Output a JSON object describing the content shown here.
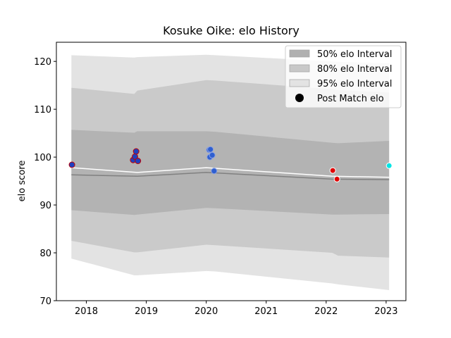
{
  "chart_data": {
    "type": "scatter",
    "title": "Kosuke Oike: elo History",
    "xlabel": "",
    "ylabel": "elo score",
    "xlim": [
      2017.5,
      2023.33
    ],
    "ylim": [
      70,
      124
    ],
    "x_ticks": [
      2018,
      2019,
      2020,
      2021,
      2022,
      2023
    ],
    "y_ticks": [
      70,
      80,
      90,
      100,
      110,
      120
    ],
    "grid": false,
    "legend_position": "top-right",
    "legend": [
      {
        "label": "50% elo Interval",
        "color": "#b0b0b0"
      },
      {
        "label": "80% elo Interval",
        "color": "#c8c8c8"
      },
      {
        "label": "95% elo Interval",
        "color": "#e3e3e3"
      },
      {
        "label": "Post Match elo",
        "color": "#000000"
      }
    ],
    "bands": {
      "x": [
        2017.75,
        2018.8,
        2018.85,
        2020.0,
        2020.15,
        2022.1,
        2022.2,
        2023.05
      ],
      "p95_upper": [
        121.3,
        120.8,
        120.9,
        121.4,
        121.3,
        120.0,
        119.9,
        119.6
      ],
      "p95_lower": [
        78.8,
        75.3,
        75.3,
        76.2,
        76.1,
        73.6,
        73.4,
        72.2
      ],
      "p80_upper": [
        114.5,
        113.2,
        113.9,
        116.1,
        116.0,
        114.2,
        114.0,
        113.5
      ],
      "p80_lower": [
        82.5,
        80.1,
        80.1,
        81.7,
        81.6,
        80.0,
        79.4,
        79.0
      ],
      "p50_upper": [
        105.7,
        105.1,
        105.4,
        105.4,
        105.3,
        103.0,
        102.9,
        103.4
      ],
      "p50_lower": [
        88.9,
        87.9,
        88.0,
        89.4,
        89.3,
        88.0,
        88.0,
        88.1
      ]
    },
    "mean_line": {
      "color": "#ffffff",
      "x": [
        2017.75,
        2018.85,
        2020.0,
        2022.1,
        2023.05
      ],
      "y": [
        97.8,
        96.8,
        97.8,
        96.0,
        95.8
      ]
    },
    "median_line": {
      "color": "#808080",
      "x": [
        2017.75,
        2018.85,
        2020.0,
        2022.1,
        2023.05
      ],
      "y": [
        96.3,
        96.0,
        96.8,
        95.4,
        95.3
      ]
    },
    "points": [
      {
        "x": 2017.76,
        "y": 98.4,
        "fill": "#1f3fbf",
        "edge": "#c00000"
      },
      {
        "x": 2018.78,
        "y": 99.4,
        "fill": "#1f3fbf",
        "edge": "#c00000"
      },
      {
        "x": 2018.81,
        "y": 100.1,
        "fill": "#1f3fbf",
        "edge": "#c00000"
      },
      {
        "x": 2018.83,
        "y": 101.2,
        "fill": "#1f3fbf",
        "edge": "#c00000"
      },
      {
        "x": 2018.86,
        "y": 99.2,
        "fill": "#1f3fbf",
        "edge": "#c00000"
      },
      {
        "x": 2020.05,
        "y": 101.5,
        "fill": "#2f5fd0",
        "edge": "#8aa0e0"
      },
      {
        "x": 2020.07,
        "y": 101.6,
        "fill": "#2f5fd0",
        "edge": "#8aa0e0"
      },
      {
        "x": 2020.06,
        "y": 100.0,
        "fill": "#2f5fd0",
        "edge": "#8aa0e0"
      },
      {
        "x": 2020.1,
        "y": 100.4,
        "fill": "#2f5fd0",
        "edge": "#8aa0e0"
      },
      {
        "x": 2020.13,
        "y": 97.1,
        "fill": "#2f5fd0",
        "edge": "#8aa0e0"
      },
      {
        "x": 2022.11,
        "y": 97.2,
        "fill": "#e00000",
        "edge": "#ffffff"
      },
      {
        "x": 2022.18,
        "y": 95.4,
        "fill": "#e00000",
        "edge": "#ffffff"
      },
      {
        "x": 2023.05,
        "y": 98.2,
        "fill": "#00e5e5",
        "edge": "#ffffff"
      }
    ]
  }
}
